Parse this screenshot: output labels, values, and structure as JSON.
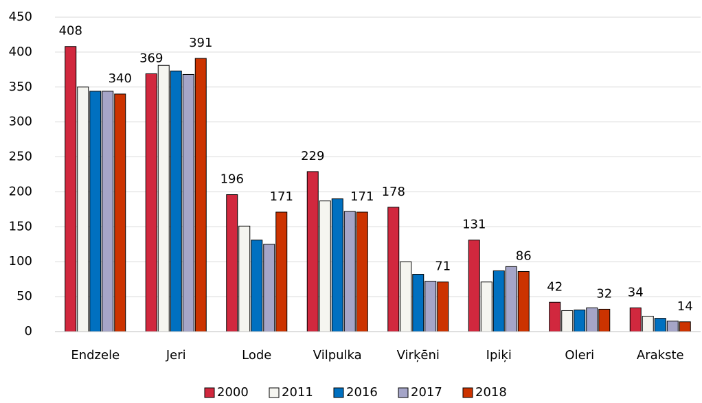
{
  "chart_data": {
    "type": "bar",
    "categories": [
      "Endzele",
      "Jeri",
      "Lode",
      "Vilpulka",
      "Virķēni",
      "Ipiķi",
      "Oleri",
      "Arakste"
    ],
    "series": [
      {
        "name": "2000",
        "color": "#d1283e",
        "show_labels": true,
        "values": [
          408,
          369,
          196,
          229,
          178,
          131,
          42,
          34
        ]
      },
      {
        "name": "2011",
        "color": "#f5f5f0",
        "values": [
          350,
          381,
          151,
          187,
          100,
          71,
          30,
          22
        ]
      },
      {
        "name": "2016",
        "color": "#0070c0",
        "values": [
          344,
          373,
          131,
          190,
          82,
          87,
          31,
          19
        ]
      },
      {
        "name": "2017",
        "color": "#a5a5c8",
        "values": [
          344,
          368,
          125,
          172,
          72,
          93,
          34,
          15
        ]
      },
      {
        "name": "2018",
        "color": "#cc3300",
        "show_labels": true,
        "values": [
          340,
          391,
          171,
          171,
          71,
          86,
          32,
          14
        ]
      }
    ],
    "ylim": [
      0,
      450
    ],
    "yticks": [
      0,
      50,
      100,
      150,
      200,
      250,
      300,
      350,
      400,
      450
    ],
    "grid": true,
    "legend": "bottom"
  }
}
